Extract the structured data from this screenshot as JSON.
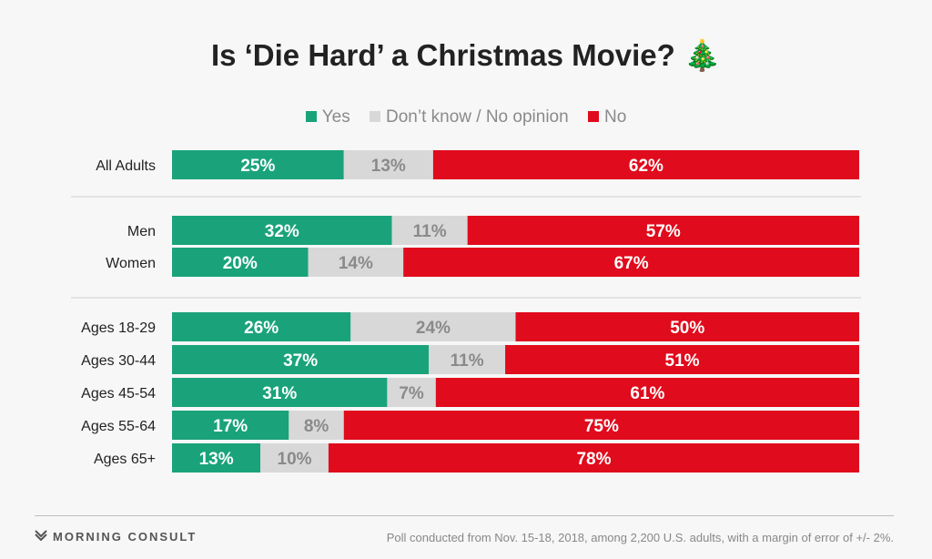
{
  "title": "Is ‘Die Hard’ a Christmas Movie? 🎄",
  "legend": [
    {
      "label": "Yes",
      "color": "#1aa37a"
    },
    {
      "label": "Don’t know / No opinion",
      "color": "#d8d8d8"
    },
    {
      "label": "No",
      "color": "#e00b1c"
    }
  ],
  "footer": {
    "brand": "MORNING CONSULT",
    "note": "Poll conducted from Nov. 15-18, 2018, among 2,200 U.S. adults, with a margin of error of +/- 2%."
  },
  "chart_data": {
    "type": "bar",
    "orientation": "horizontal",
    "stacked": true,
    "normalized_to": 100,
    "categories": [
      "All Adults",
      "Men",
      "Women",
      "Ages 18-29",
      "Ages 30-44",
      "Ages 45-54",
      "Ages 55-64",
      "Ages 65+"
    ],
    "groups": [
      [
        "All Adults"
      ],
      [
        "Men",
        "Women"
      ],
      [
        "Ages 18-29",
        "Ages 30-44",
        "Ages 45-54",
        "Ages 55-64",
        "Ages 65+"
      ]
    ],
    "series": [
      {
        "name": "Yes",
        "color": "#1aa37a",
        "label_color": "#ffffff",
        "values": [
          25,
          32,
          20,
          26,
          37,
          31,
          17,
          13
        ]
      },
      {
        "name": "Don’t know / No opinion",
        "color": "#d8d8d8",
        "label_color": "#8a8a8a",
        "values": [
          13,
          11,
          14,
          24,
          11,
          7,
          8,
          10
        ]
      },
      {
        "name": "No",
        "color": "#e00b1c",
        "label_color": "#ffffff",
        "values": [
          62,
          57,
          67,
          50,
          51,
          61,
          75,
          78
        ]
      }
    ],
    "value_suffix": "%",
    "title": "Is ‘Die Hard’ a Christmas Movie?",
    "xlabel": "",
    "ylabel": "",
    "xlim": [
      0,
      100
    ],
    "grid": false,
    "legend_position": "top-center"
  }
}
